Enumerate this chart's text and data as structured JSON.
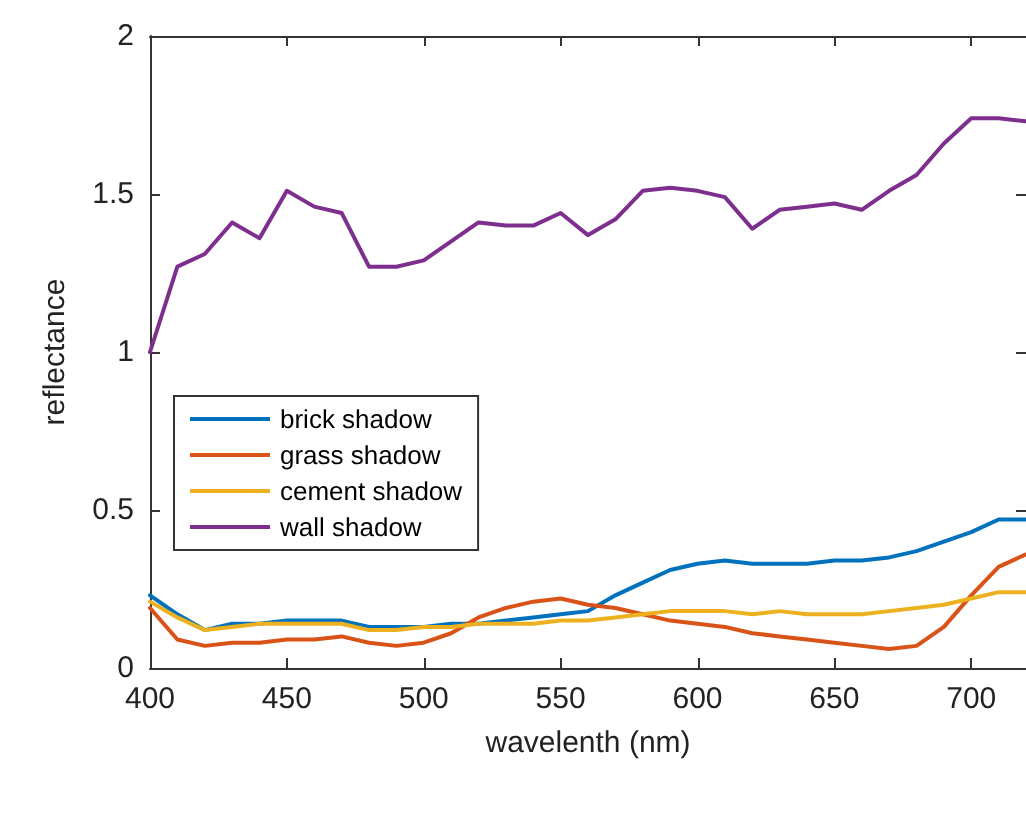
{
  "chart_data": {
    "type": "line",
    "xlabel": "wavelenth (nm)",
    "ylabel": "reflectance",
    "x": [
      400,
      410,
      420,
      430,
      440,
      450,
      460,
      470,
      480,
      490,
      500,
      510,
      520,
      530,
      540,
      550,
      560,
      570,
      580,
      590,
      600,
      610,
      620,
      630,
      640,
      650,
      660,
      670,
      680,
      690,
      700,
      710,
      720
    ],
    "series": [
      {
        "name": "brick shadow",
        "color": "#0072bd",
        "values": [
          0.23,
          0.17,
          0.12,
          0.14,
          0.14,
          0.15,
          0.15,
          0.15,
          0.13,
          0.13,
          0.13,
          0.14,
          0.14,
          0.15,
          0.16,
          0.17,
          0.18,
          0.23,
          0.27,
          0.31,
          0.33,
          0.34,
          0.33,
          0.33,
          0.33,
          0.34,
          0.34,
          0.35,
          0.37,
          0.4,
          0.43,
          0.47,
          0.47
        ]
      },
      {
        "name": "grass shadow",
        "color": "#d95319",
        "values": [
          0.19,
          0.09,
          0.07,
          0.08,
          0.08,
          0.09,
          0.09,
          0.1,
          0.08,
          0.07,
          0.08,
          0.11,
          0.16,
          0.19,
          0.21,
          0.22,
          0.2,
          0.19,
          0.17,
          0.15,
          0.14,
          0.13,
          0.11,
          0.1,
          0.09,
          0.08,
          0.07,
          0.06,
          0.07,
          0.13,
          0.23,
          0.32,
          0.36
        ]
      },
      {
        "name": "cement shadow",
        "color": "#edb120",
        "values": [
          0.21,
          0.16,
          0.12,
          0.13,
          0.14,
          0.14,
          0.14,
          0.14,
          0.12,
          0.12,
          0.13,
          0.13,
          0.14,
          0.14,
          0.14,
          0.15,
          0.15,
          0.16,
          0.17,
          0.18,
          0.18,
          0.18,
          0.17,
          0.18,
          0.17,
          0.17,
          0.17,
          0.18,
          0.19,
          0.2,
          0.22,
          0.24,
          0.24
        ]
      },
      {
        "name": "wall shadow",
        "color": "#7e2f8e",
        "values": [
          1.0,
          1.27,
          1.31,
          1.41,
          1.36,
          1.51,
          1.46,
          1.44,
          1.27,
          1.27,
          1.29,
          1.35,
          1.41,
          1.4,
          1.4,
          1.44,
          1.37,
          1.42,
          1.51,
          1.52,
          1.51,
          1.49,
          1.39,
          1.45,
          1.46,
          1.47,
          1.45,
          1.51,
          1.56,
          1.66,
          1.74,
          1.74,
          1.73
        ]
      }
    ],
    "xlim": [
      400,
      720
    ],
    "xticks": [
      400,
      450,
      500,
      550,
      600,
      650,
      700
    ],
    "ylim": [
      0,
      2
    ],
    "yticks": [
      0,
      0.5,
      1,
      1.5,
      2
    ],
    "grid": false,
    "legend": "left",
    "marker": "none",
    "line_style": "solid"
  }
}
